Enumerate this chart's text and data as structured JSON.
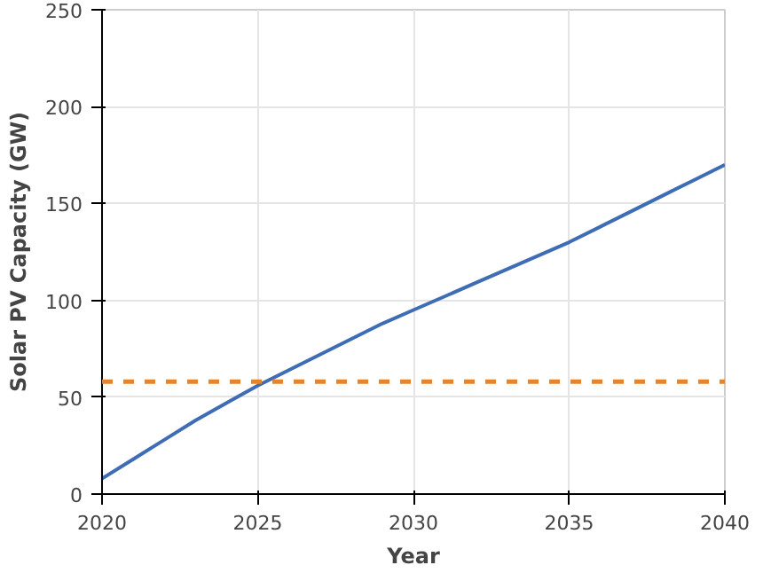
{
  "chart_data": {
    "type": "line",
    "xlabel": "Year",
    "ylabel": "Solar PV Capacity (GW)",
    "x": [
      2020,
      2021,
      2022,
      2023,
      2024,
      2025,
      2026,
      2027,
      2028,
      2029,
      2030,
      2031,
      2032,
      2033,
      2034,
      2035,
      2036,
      2037,
      2038,
      2039,
      2040
    ],
    "series": [
      {
        "color": "#3f6db5",
        "values": [
          8,
          18,
          28,
          38,
          47,
          56,
          64,
          72,
          80,
          88,
          95,
          102,
          109,
          116,
          123,
          130,
          138,
          146,
          154,
          162,
          170
        ]
      }
    ],
    "ref_lines": [
      {
        "axis": "y",
        "value": 58,
        "color": "#e8832a",
        "line_style": "dashed"
      }
    ],
    "xlim": [
      2020,
      2040
    ],
    "ylim": [
      0,
      250
    ],
    "xticks": [
      2020,
      2025,
      2030,
      2035,
      2040
    ],
    "yticks": [
      0,
      50,
      100,
      150,
      200,
      250
    ],
    "grid": true
  }
}
